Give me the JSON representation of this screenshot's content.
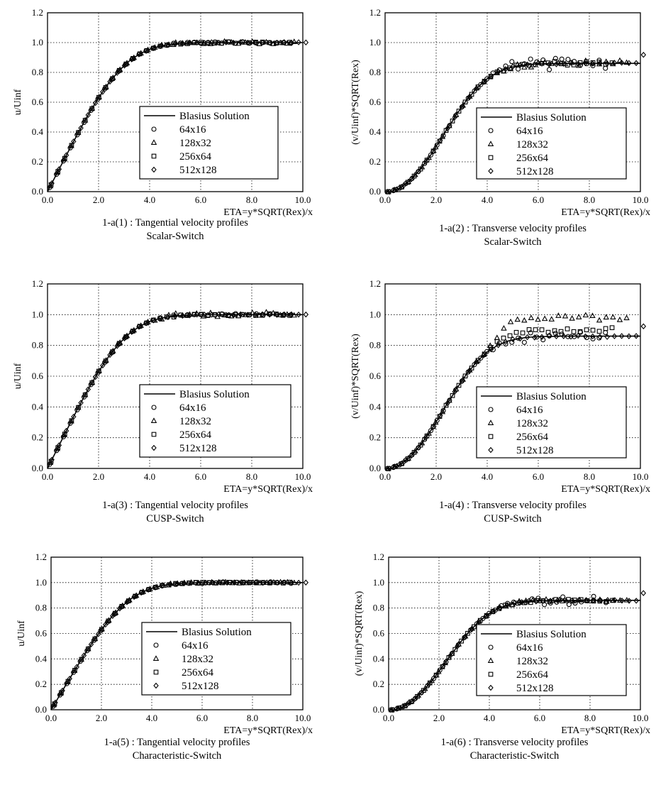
{
  "chart_data": [
    {
      "type": "line",
      "caption": [
        "1-a(1) : Tangential velocity profiles",
        "Scalar-Switch"
      ],
      "xlabel": "ETA=y*SQRT(Rex)/x",
      "ylabel": "u/Uinf",
      "xlim": [
        0,
        10
      ],
      "ylim": [
        0,
        1.2
      ],
      "xticks": [
        "0.0",
        "2.0",
        "4.0",
        "6.0",
        "8.0",
        "10.0"
      ],
      "yticks": [
        "0.0",
        "0.2",
        "0.4",
        "0.6",
        "0.8",
        "1.0",
        "1.2"
      ],
      "grid": true,
      "legend_position": "center-right",
      "series": [
        {
          "name": "Blasius Solution",
          "kind": "line",
          "profile": "u",
          "scatter": 0
        },
        {
          "name": "64x16",
          "kind": "marker",
          "marker": "circle",
          "profile": "u",
          "scatter": 0.006,
          "x_end": 9.5
        },
        {
          "name": "128x32",
          "kind": "marker",
          "marker": "triangle",
          "profile": "u",
          "scatter": 0.01,
          "x_end": 9.6
        },
        {
          "name": "256x64",
          "kind": "marker",
          "marker": "square",
          "profile": "u",
          "scatter": 0.005,
          "x_end": 9.4
        },
        {
          "name": "512x128",
          "kind": "marker",
          "marker": "diamond",
          "profile": "u",
          "scatter": 0.003,
          "x_end": 10.0
        }
      ]
    },
    {
      "type": "line",
      "caption": [
        "1-a(2) : Transverse velocity profiles",
        "Scalar-Switch"
      ],
      "xlabel": "ETA=y*SQRT(Rex)/x",
      "ylabel": "(v/Uinf)*SQRT(Rex)",
      "xlim": [
        0,
        10
      ],
      "ylim": [
        0,
        1.2
      ],
      "xticks": [
        "0.0",
        "2.0",
        "4.0",
        "6.0",
        "8.0",
        "10.0"
      ],
      "yticks": [
        "0.0",
        "0.2",
        "0.4",
        "0.6",
        "0.8",
        "1.0",
        "1.2"
      ],
      "grid": true,
      "legend_position": "center-right",
      "series": [
        {
          "name": "Blasius Solution",
          "kind": "line",
          "profile": "v",
          "scatter": 0
        },
        {
          "name": "64x16",
          "kind": "marker",
          "marker": "circle",
          "profile": "v",
          "scatter": 0.04,
          "x_end": 8.6
        },
        {
          "name": "128x32",
          "kind": "marker",
          "marker": "triangle",
          "profile": "v",
          "scatter": 0.02,
          "x_end": 9.4
        },
        {
          "name": "256x64",
          "kind": "marker",
          "marker": "square",
          "profile": "v",
          "scatter": 0.015,
          "x_end": 8.8
        },
        {
          "name": "512x128",
          "kind": "marker",
          "marker": "diamond",
          "profile": "v",
          "scatter": 0.005,
          "x_end": 10.0
        }
      ]
    },
    {
      "type": "line",
      "caption": [
        "1-a(3) : Tangential velocity profiles",
        "CUSP-Switch"
      ],
      "xlabel": "ETA=y*SQRT(Rex)/x",
      "ylabel": "u/Uinf",
      "xlim": [
        0,
        10
      ],
      "ylim": [
        0,
        1.2
      ],
      "xticks": [
        "0.0",
        "2.0",
        "4.0",
        "6.0",
        "8.0",
        "10.0"
      ],
      "yticks": [
        "0.0",
        "0.2",
        "0.4",
        "0.6",
        "0.8",
        "1.0",
        "1.2"
      ],
      "grid": true,
      "legend_position": "center-right",
      "series": [
        {
          "name": "Blasius Solution",
          "kind": "line",
          "profile": "u",
          "scatter": 0
        },
        {
          "name": "64x16",
          "kind": "marker",
          "marker": "circle",
          "profile": "u",
          "scatter": 0.008,
          "x_end": 9.5
        },
        {
          "name": "128x32",
          "kind": "marker",
          "marker": "triangle",
          "profile": "u",
          "scatter": 0.02,
          "x_end": 9.6
        },
        {
          "name": "256x64",
          "kind": "marker",
          "marker": "square",
          "profile": "u",
          "scatter": 0.006,
          "x_end": 9.4
        },
        {
          "name": "512x128",
          "kind": "marker",
          "marker": "diamond",
          "profile": "u",
          "scatter": 0.003,
          "x_end": 10.0
        }
      ]
    },
    {
      "type": "line",
      "caption": [
        "1-a(4) : Transverse velocity profiles",
        "CUSP-Switch"
      ],
      "xlabel": "ETA=y*SQRT(Rex)/x",
      "ylabel": "(v/Uinf)*SQRT(Rex)",
      "xlim": [
        0,
        10
      ],
      "ylim": [
        0,
        1.2
      ],
      "xticks": [
        "0.0",
        "2.0",
        "4.0",
        "6.0",
        "8.0",
        "10.0"
      ],
      "yticks": [
        "0.0",
        "0.2",
        "0.4",
        "0.6",
        "0.8",
        "1.0",
        "1.2"
      ],
      "grid": true,
      "legend_position": "center-right",
      "series": [
        {
          "name": "Blasius Solution",
          "kind": "line",
          "profile": "v",
          "scatter": 0
        },
        {
          "name": "64x16",
          "kind": "marker",
          "marker": "circle",
          "profile": "v",
          "scatter": 0.03,
          "x_end": 8.6
        },
        {
          "name": "128x32",
          "kind": "marker",
          "marker": "triangle",
          "profile": "v",
          "scatter": 0.02,
          "offset": 0.12,
          "x_end": 9.4
        },
        {
          "name": "256x64",
          "kind": "marker",
          "marker": "square",
          "profile": "v",
          "scatter": 0.015,
          "offset": 0.04,
          "x_end": 8.8
        },
        {
          "name": "512x128",
          "kind": "marker",
          "marker": "diamond",
          "profile": "v",
          "scatter": 0.005,
          "x_end": 10.0
        }
      ]
    },
    {
      "type": "line",
      "caption": [
        "1-a(5) : Tangential velocity profiles",
        "Characteristic-Switch"
      ],
      "xlabel": "ETA=y*SQRT(Rex)/x",
      "ylabel": "u/Uinf",
      "xlim": [
        0,
        10
      ],
      "ylim": [
        0,
        1.2
      ],
      "xticks": [
        "0.0",
        "2.0",
        "4.0",
        "6.0",
        "8.0",
        "10.0"
      ],
      "yticks": [
        "0.0",
        "0.2",
        "0.4",
        "0.6",
        "0.8",
        "1.0",
        "1.2"
      ],
      "grid": true,
      "legend_position": "center-right",
      "series": [
        {
          "name": "Blasius Solution",
          "kind": "line",
          "profile": "u",
          "scatter": 0
        },
        {
          "name": "64x16",
          "kind": "marker",
          "marker": "circle",
          "profile": "u",
          "scatter": 0.006,
          "x_end": 9.5
        },
        {
          "name": "128x32",
          "kind": "marker",
          "marker": "triangle",
          "profile": "u",
          "scatter": 0.006,
          "x_end": 9.6
        },
        {
          "name": "256x64",
          "kind": "marker",
          "marker": "square",
          "profile": "u",
          "scatter": 0.004,
          "x_end": 9.4
        },
        {
          "name": "512x128",
          "kind": "marker",
          "marker": "diamond",
          "profile": "u",
          "scatter": 0.002,
          "x_end": 10.0
        }
      ]
    },
    {
      "type": "line",
      "caption": [
        "1-a(6) : Transverse velocity profiles",
        "Characteristic-Switch"
      ],
      "xlabel": "ETA=y*SQRT(Rex)/x",
      "ylabel": "(v/Uinf)*SQRT(Rex)",
      "xlim": [
        0,
        10
      ],
      "ylim": [
        0,
        1.2
      ],
      "xticks": [
        "0.0",
        "2.0",
        "4.0",
        "6.0",
        "8.0",
        "10.0"
      ],
      "yticks": [
        "0.0",
        "0.2",
        "0.4",
        "0.6",
        "0.8",
        "1.0",
        "1.2"
      ],
      "grid": true,
      "legend_position": "center-right",
      "series": [
        {
          "name": "Blasius Solution",
          "kind": "line",
          "profile": "v",
          "scatter": 0
        },
        {
          "name": "64x16",
          "kind": "marker",
          "marker": "circle",
          "profile": "v",
          "scatter": 0.035,
          "x_end": 8.6
        },
        {
          "name": "128x32",
          "kind": "marker",
          "marker": "triangle",
          "profile": "v",
          "scatter": 0.01,
          "x_end": 9.4
        },
        {
          "name": "256x64",
          "kind": "marker",
          "marker": "square",
          "profile": "v",
          "scatter": 0.01,
          "x_end": 8.8
        },
        {
          "name": "512x128",
          "kind": "marker",
          "marker": "diamond",
          "profile": "v",
          "scatter": 0.004,
          "x_end": 10.0
        }
      ]
    }
  ]
}
